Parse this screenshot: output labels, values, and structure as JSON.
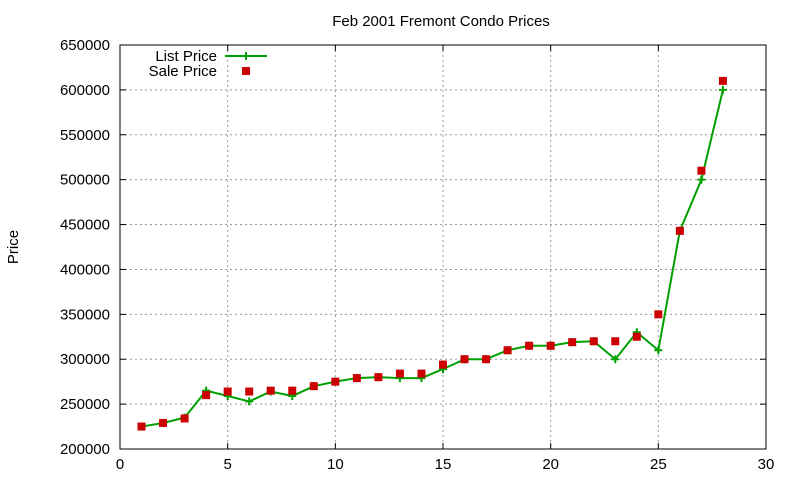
{
  "chart_data": {
    "type": "line",
    "title": "Feb 2001 Fremont Condo Prices",
    "xlabel": "",
    "ylabel": "Price",
    "xlim": [
      0,
      30
    ],
    "ylim": [
      200000,
      650000
    ],
    "xticks": [
      0,
      5,
      10,
      15,
      20,
      25,
      30
    ],
    "yticks": [
      200000,
      250000,
      300000,
      350000,
      400000,
      450000,
      500000,
      550000,
      600000,
      650000
    ],
    "grid": true,
    "legend_position": "top-left",
    "series": [
      {
        "name": "List Price",
        "style": "line-with-plus-markers",
        "color": "#00a000",
        "x": [
          1,
          2,
          3,
          4,
          5,
          6,
          7,
          8,
          9,
          10,
          11,
          12,
          13,
          14,
          15,
          16,
          17,
          18,
          19,
          20,
          21,
          22,
          23,
          24,
          25,
          26,
          27,
          28
        ],
        "y": [
          225000,
          229000,
          235000,
          265000,
          259000,
          253000,
          264000,
          259000,
          270000,
          275000,
          279000,
          280000,
          279000,
          279000,
          289000,
          300000,
          300000,
          310000,
          315000,
          315000,
          319000,
          320000,
          300000,
          330000,
          310000,
          443000,
          500000,
          600000
        ]
      },
      {
        "name": "Sale Price",
        "style": "square-markers",
        "color": "#cc0000",
        "x": [
          1,
          2,
          3,
          4,
          5,
          6,
          7,
          8,
          9,
          10,
          11,
          12,
          13,
          14,
          15,
          16,
          17,
          18,
          19,
          20,
          21,
          22,
          23,
          24,
          25,
          26,
          27,
          28
        ],
        "y": [
          225000,
          229000,
          234000,
          260000,
          264000,
          264000,
          265000,
          265000,
          270000,
          275000,
          279000,
          280000,
          284000,
          284000,
          294000,
          300000,
          300000,
          310000,
          315000,
          315000,
          319000,
          320000,
          320000,
          325000,
          350000,
          443000,
          510000,
          610000
        ]
      }
    ]
  }
}
